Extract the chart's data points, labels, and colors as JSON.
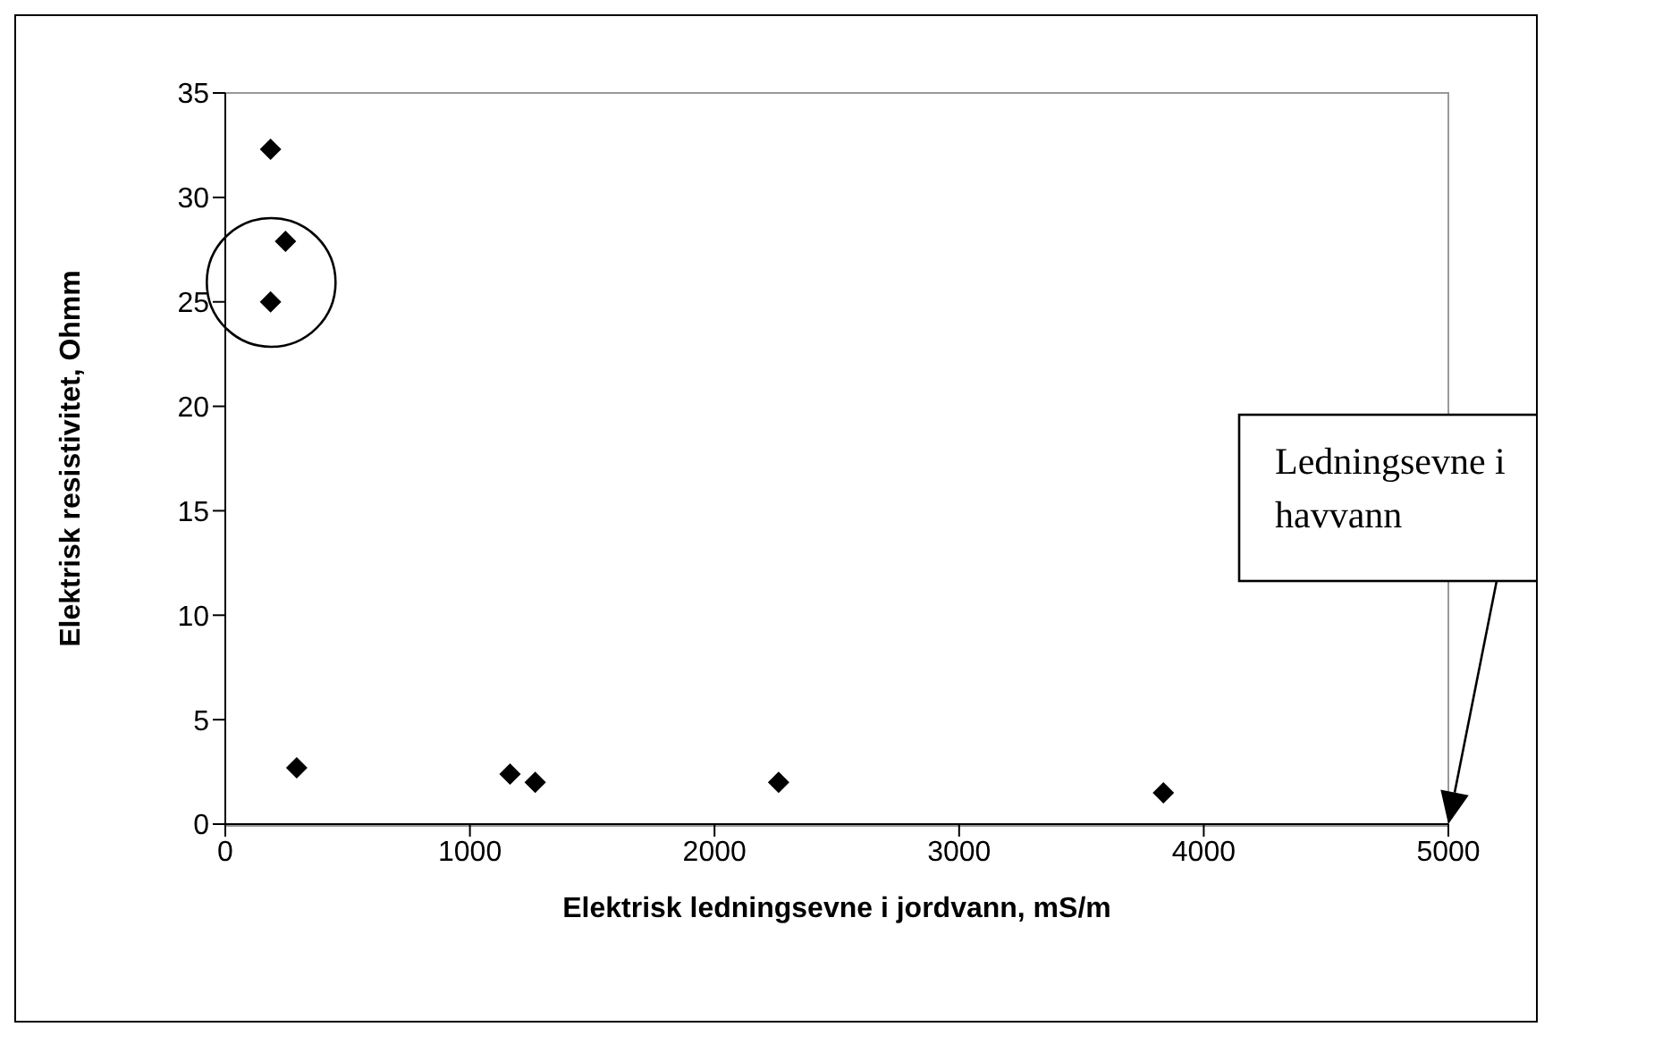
{
  "chart_data": {
    "type": "scatter",
    "xlabel": "Elektrisk ledningsevne i jordvann, mS/m",
    "ylabel": "Elektrisk resistivitet, Ohmm",
    "x": [
      185,
      246,
      185,
      292,
      1164,
      1267,
      2262,
      3835
    ],
    "values": [
      32.3,
      27.9,
      25.0,
      2.7,
      2.4,
      2.0,
      2.0,
      1.5
    ],
    "color": "#000000",
    "marker": "diamond",
    "grid": false,
    "legend": false,
    "xlim": [
      0,
      5000
    ],
    "xticks": [
      0,
      1000,
      2000,
      3000,
      4000,
      5000
    ],
    "ylim": [
      0,
      35
    ],
    "yticks": [
      0,
      5,
      10,
      15,
      20,
      25,
      30,
      35
    ],
    "annotations": [
      "Ledningsevne i havvann"
    ]
  }
}
